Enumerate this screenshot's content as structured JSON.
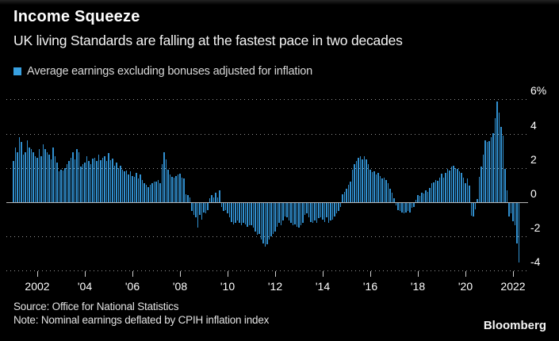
{
  "header": {
    "title": "Income Squeeze",
    "subtitle": "UK living Standards are falling at the fastest pace in two decades"
  },
  "legend": {
    "label": "Average earnings excluding bonuses adjusted for inflation",
    "swatch_color": "#38a0e0"
  },
  "chart_data": {
    "type": "bar",
    "title": "Income Squeeze",
    "subtitle": "UK living Standards are falling at the fastest pace in two decades",
    "series_name": "Average earnings excluding bonuses adjusted for inflation",
    "unit": "%",
    "frequency": "monthly",
    "start": "2001-01",
    "end": "2022-04",
    "ylim": [
      -4.5,
      6.5
    ],
    "grid": "horizontal dotted, solid zero line, labels on right",
    "bar_color": "#3190d0",
    "y_ticks": [
      {
        "label": "6%",
        "value": 6
      },
      {
        "label": "4",
        "value": 4
      },
      {
        "label": "2",
        "value": 2
      },
      {
        "label": "0",
        "value": 0
      },
      {
        "label": "-2",
        "value": -2
      },
      {
        "label": "-4",
        "value": -4
      }
    ],
    "x_ticks": [
      {
        "label": "2002",
        "year": 2002
      },
      {
        "label": "'04",
        "year": 2004
      },
      {
        "label": "'06",
        "year": 2006
      },
      {
        "label": "'08",
        "year": 2008
      },
      {
        "label": "'10",
        "year": 2010
      },
      {
        "label": "'12",
        "year": 2012
      },
      {
        "label": "'14",
        "year": 2014
      },
      {
        "label": "'16",
        "year": 2016
      },
      {
        "label": "'18",
        "year": 2018
      },
      {
        "label": "'20",
        "year": 2020
      },
      {
        "label": "2022",
        "year": 2022
      }
    ],
    "values": [
      2.4,
      3.2,
      2.9,
      3.8,
      3.5,
      2.8,
      2.9,
      3.6,
      3.2,
      3.1,
      2.9,
      2.7,
      2.6,
      3.1,
      2.7,
      3.4,
      3.1,
      2.9,
      2.8,
      2.5,
      3.2,
      2.7,
      2.3,
      1.8,
      1.9,
      1.85,
      2.0,
      2.2,
      2.4,
      2.6,
      2.9,
      2.5,
      3.1,
      2.9,
      2.1,
      2.2,
      2.3,
      2.7,
      2.4,
      2.2,
      2.55,
      2.6,
      2.4,
      2.8,
      2.45,
      2.6,
      2.7,
      2.4,
      2.85,
      2.45,
      2.55,
      2.15,
      2.3,
      2.0,
      2.15,
      1.9,
      1.8,
      1.85,
      1.6,
      1.8,
      1.55,
      1.5,
      1.7,
      1.4,
      1.6,
      1.3,
      1.1,
      1.0,
      0.9,
      1.0,
      1.1,
      1.2,
      1.2,
      1.3,
      1.1,
      2.2,
      2.9,
      2.5,
      1.9,
      1.6,
      1.5,
      1.45,
      1.55,
      1.6,
      1.65,
      1.45,
      1.4,
      0.45,
      0.4,
      0.3,
      -0.45,
      -0.7,
      -0.85,
      -1.45,
      -0.7,
      -0.95,
      -0.55,
      -0.6,
      -0.4,
      0.25,
      0.4,
      0.3,
      0.55,
      0.3,
      0.7,
      -0.25,
      -0.45,
      -0.4,
      -0.6,
      -0.85,
      -1.1,
      -1.25,
      -1.15,
      -1.0,
      -1.15,
      -1.3,
      -1.15,
      -1.25,
      -1.4,
      -1.3,
      -1.3,
      -1.45,
      -1.65,
      -1.85,
      -1.8,
      -2.15,
      -2.35,
      -2.55,
      -2.4,
      -2.15,
      -1.95,
      -1.8,
      -1.65,
      -1.4,
      -1.15,
      -1.3,
      -1.0,
      -0.8,
      -0.85,
      -1.0,
      -1.15,
      -1.3,
      -1.25,
      -1.4,
      -1.45,
      -1.3,
      -1.15,
      -0.7,
      -0.6,
      -0.85,
      -1.1,
      -1.15,
      -1.0,
      -1.15,
      -0.9,
      -0.85,
      -0.95,
      -1.1,
      -0.85,
      -1.15,
      -1.0,
      -0.95,
      -0.8,
      -0.6,
      -0.45,
      -0.25,
      0.45,
      0.6,
      0.8,
      1.0,
      1.2,
      1.9,
      2.2,
      2.4,
      2.6,
      2.7,
      2.5,
      2.7,
      2.5,
      2.2,
      1.9,
      1.75,
      1.8,
      1.6,
      1.7,
      1.55,
      1.4,
      1.45,
      1.3,
      1.1,
      0.8,
      0.55,
      0.25,
      -0.15,
      -0.4,
      -0.45,
      -0.55,
      -0.6,
      -0.55,
      -0.45,
      -0.55,
      -0.3,
      -0.25,
      0.15,
      0.4,
      0.35,
      0.55,
      0.5,
      0.7,
      0.6,
      0.85,
      1.1,
      1.15,
      1.3,
      1.25,
      1.45,
      1.65,
      1.45,
      1.7,
      1.95,
      1.85,
      2.1,
      2.15,
      2.0,
      1.95,
      1.8,
      1.7,
      1.45,
      1.1,
      1.4,
      0.95,
      -0.75,
      -0.8,
      -0.35,
      0.2,
      1.5,
      2.1,
      2.8,
      3.6,
      3.5,
      3.55,
      3.8,
      4.05,
      4.9,
      5.9,
      5.25,
      4.4,
      3.9,
      1.95,
      0.7,
      -0.8,
      -0.6,
      -1.05,
      -1.3,
      -2.35,
      -3.45
    ]
  },
  "footer": {
    "source": "Source: Office for National Statistics",
    "note": "Note: Nominal earnings deflated by CPIH inflation index",
    "brand": "Bloomberg"
  }
}
